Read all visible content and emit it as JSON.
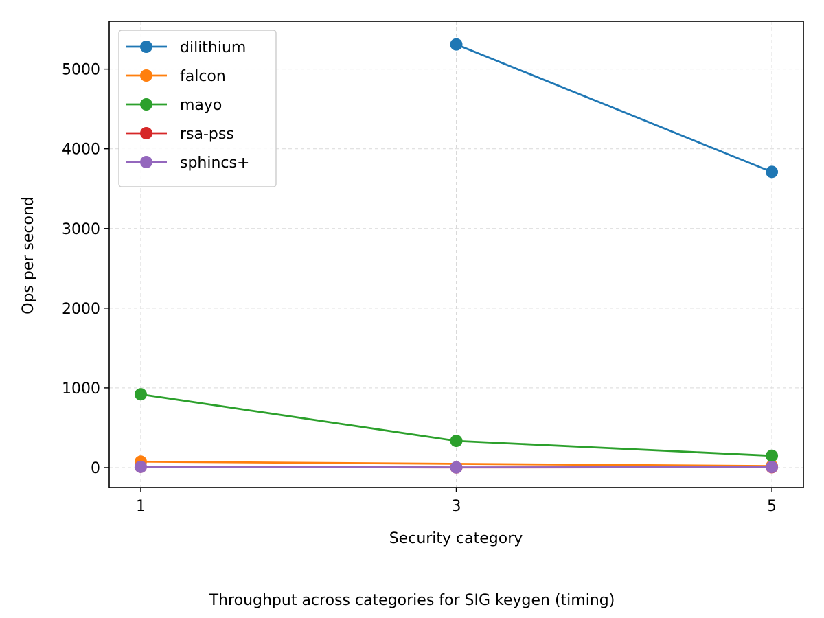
{
  "caption": "Throughput across categories for SIG keygen (timing)",
  "chart_data": {
    "type": "line",
    "title": "",
    "xlabel": "Security category",
    "ylabel": "Ops per second",
    "x_ticks": [
      1,
      3,
      5
    ],
    "y_ticks": [
      0,
      1000,
      2000,
      3000,
      4000,
      5000
    ],
    "xlim": [
      0.8,
      5.2
    ],
    "ylim": [
      -250,
      5600
    ],
    "grid": true,
    "legend_position": "top-left",
    "series": [
      {
        "name": "dilithium",
        "color": "#1f77b4",
        "points": [
          [
            3,
            5310
          ],
          [
            5,
            3710
          ]
        ]
      },
      {
        "name": "falcon",
        "color": "#ff7f0e",
        "points": [
          [
            1,
            75
          ],
          [
            5,
            20
          ]
        ]
      },
      {
        "name": "mayo",
        "color": "#2ca02c",
        "points": [
          [
            1,
            920
          ],
          [
            3,
            335
          ],
          [
            5,
            148
          ]
        ]
      },
      {
        "name": "rsa-pss",
        "color": "#d62728",
        "points": [
          [
            1,
            10
          ],
          [
            3,
            2
          ],
          [
            5,
            5
          ]
        ]
      },
      {
        "name": "sphincs+",
        "color": "#9467bd",
        "points": [
          [
            1,
            10
          ],
          [
            3,
            3
          ],
          [
            5,
            8
          ]
        ]
      }
    ]
  }
}
